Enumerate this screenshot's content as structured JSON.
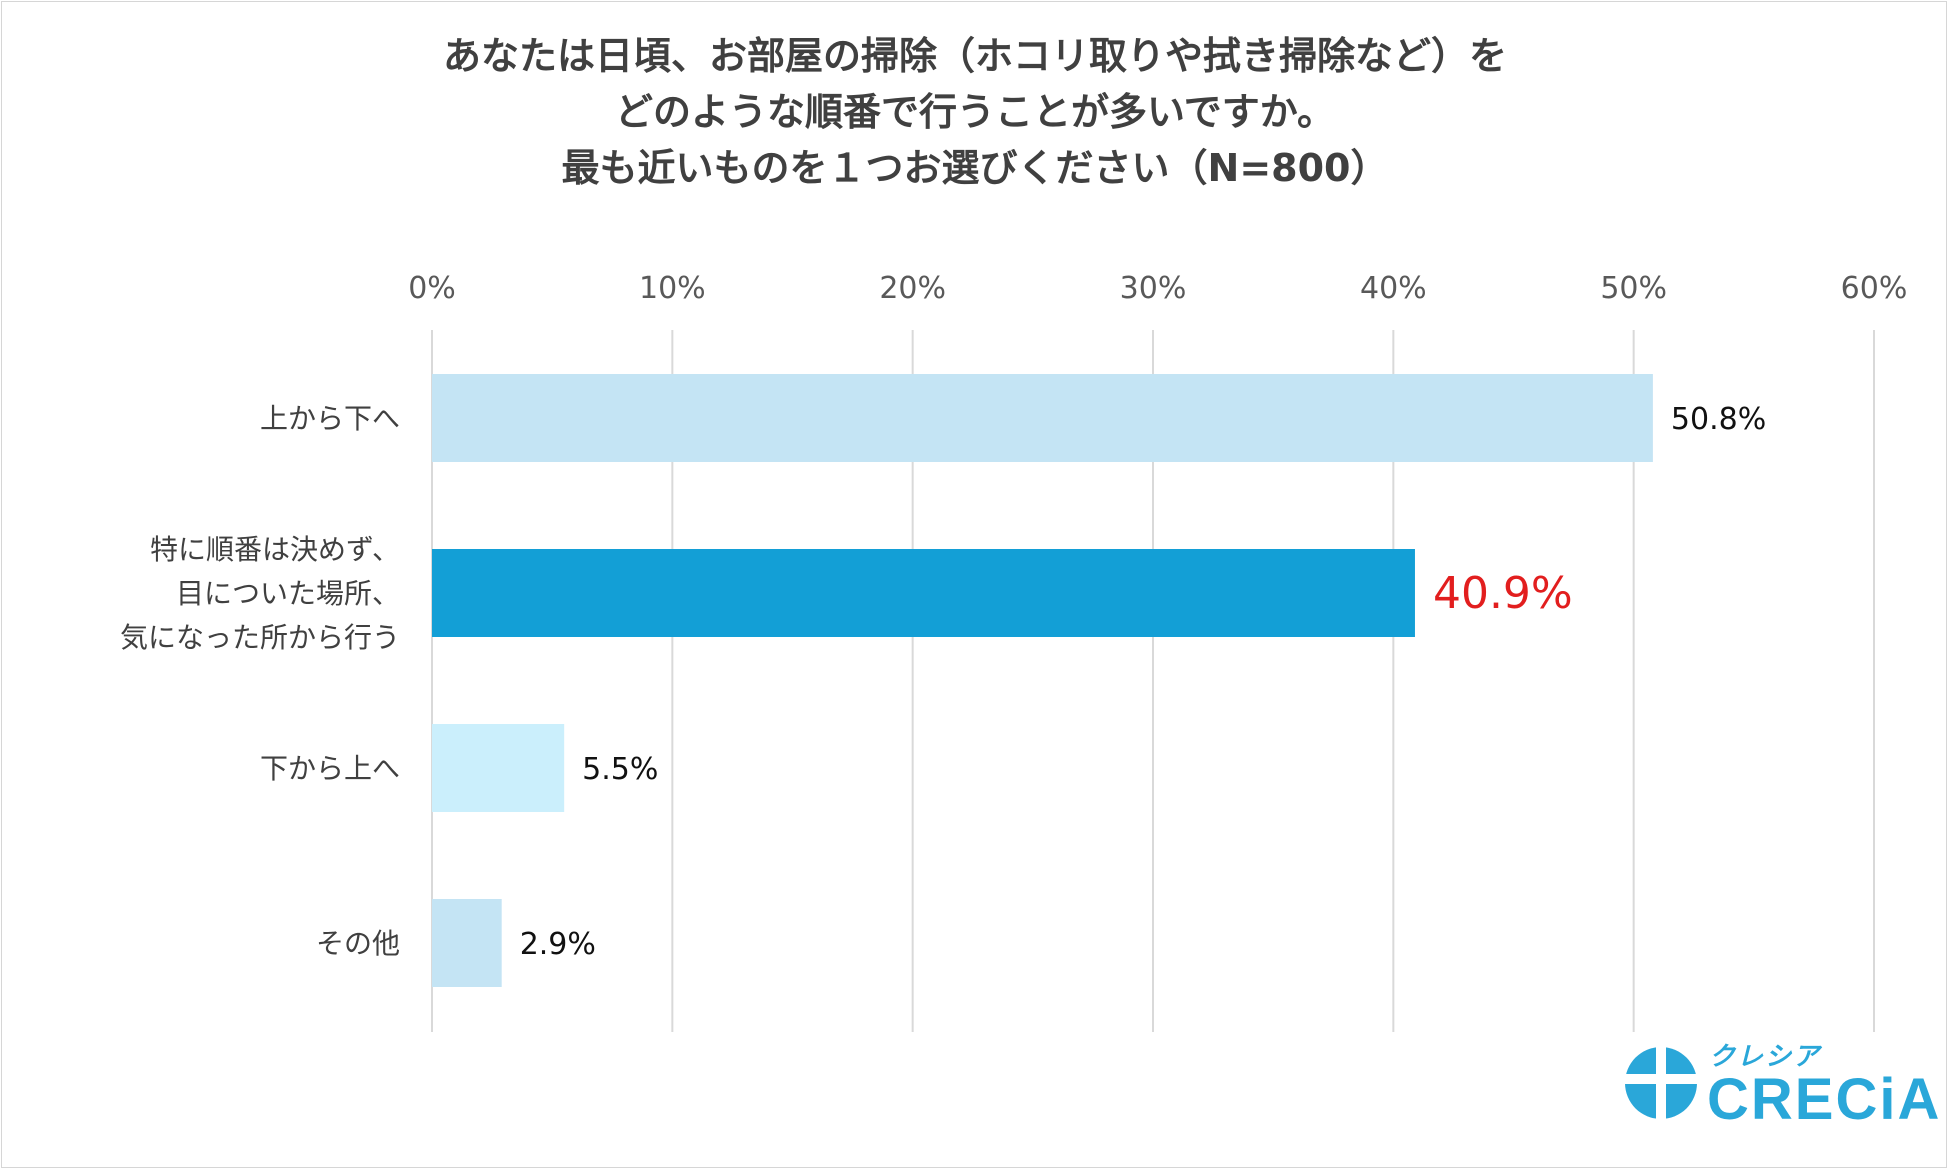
{
  "title_lines": [
    "あなたは日頃、お部屋の掃除（ホコリ取りや拭き掃除など）を",
    "どのような順番で行うことが多いですか。",
    "最も近いものを１つお選びください（N=800）"
  ],
  "chart_data": {
    "type": "bar",
    "orientation": "horizontal",
    "title": "あなたは日頃、お部屋の掃除（ホコリ取りや拭き掃除など）を どのような順番で行うことが多いですか。 最も近いものを１つお選びください（N=800）",
    "categories": [
      [
        "上から下へ"
      ],
      [
        "特に順番は決めず、",
        "目についた場所、",
        "気になった所から行う"
      ],
      [
        "下から上へ"
      ],
      [
        "その他"
      ]
    ],
    "values": [
      50.8,
      40.9,
      5.5,
      2.9
    ],
    "value_labels": [
      "50.8%",
      "40.9%",
      "5.5%",
      "2.9%"
    ],
    "bar_colors": [
      "#c4e4f4",
      "#139fd6",
      "#cbeffc",
      "#c4e4f4"
    ],
    "label_colors": [
      "#111111",
      "#e21e1e",
      "#111111",
      "#111111"
    ],
    "highlight_index": 1,
    "xlim": [
      0,
      60
    ],
    "xticks": [
      0,
      10,
      20,
      30,
      40,
      50,
      60
    ],
    "xtick_labels": [
      "0%",
      "10%",
      "20%",
      "30%",
      "40%",
      "50%",
      "60%"
    ],
    "xlabel": "",
    "ylabel": "",
    "grid": true,
    "axis_position": "top"
  },
  "logo": {
    "kana": "クレシア",
    "word": "CRECiA",
    "color": "#2aa7d9"
  }
}
